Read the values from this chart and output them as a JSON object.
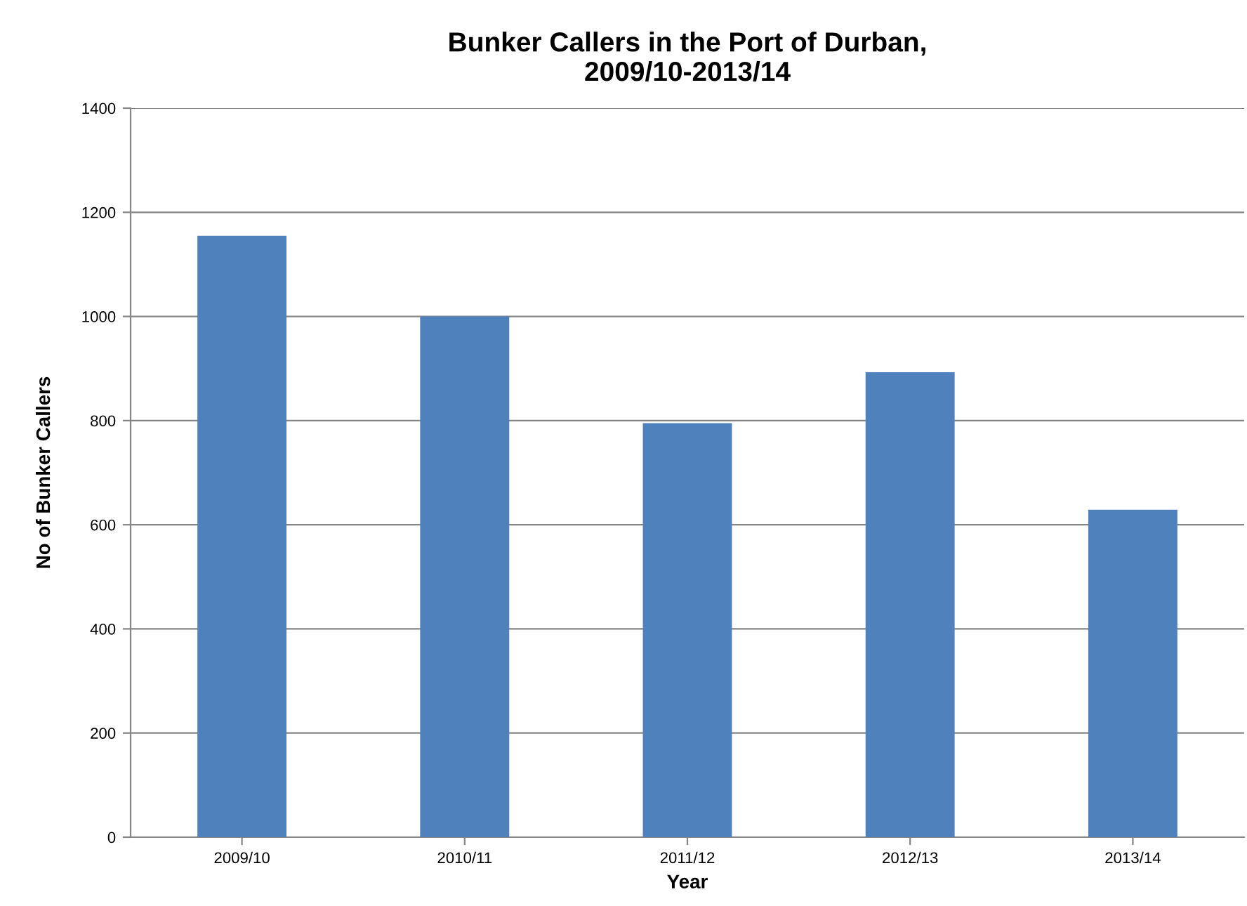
{
  "chart_data": {
    "type": "bar",
    "title": "Bunker Callers in the Port of Durban,\n2009/10-2013/14",
    "xlabel": "Year",
    "ylabel": "No of Bunker Callers",
    "categories": [
      "2009/10",
      "2010/11",
      "2011/12",
      "2012/13",
      "2013/14"
    ],
    "values": [
      1155,
      1000,
      795,
      893,
      629
    ],
    "color": "#4f81bd",
    "ylim": [
      0,
      1400
    ],
    "yticks": [
      0,
      200,
      400,
      600,
      800,
      1000,
      1200,
      1400
    ],
    "grid": "y",
    "legend": false
  }
}
